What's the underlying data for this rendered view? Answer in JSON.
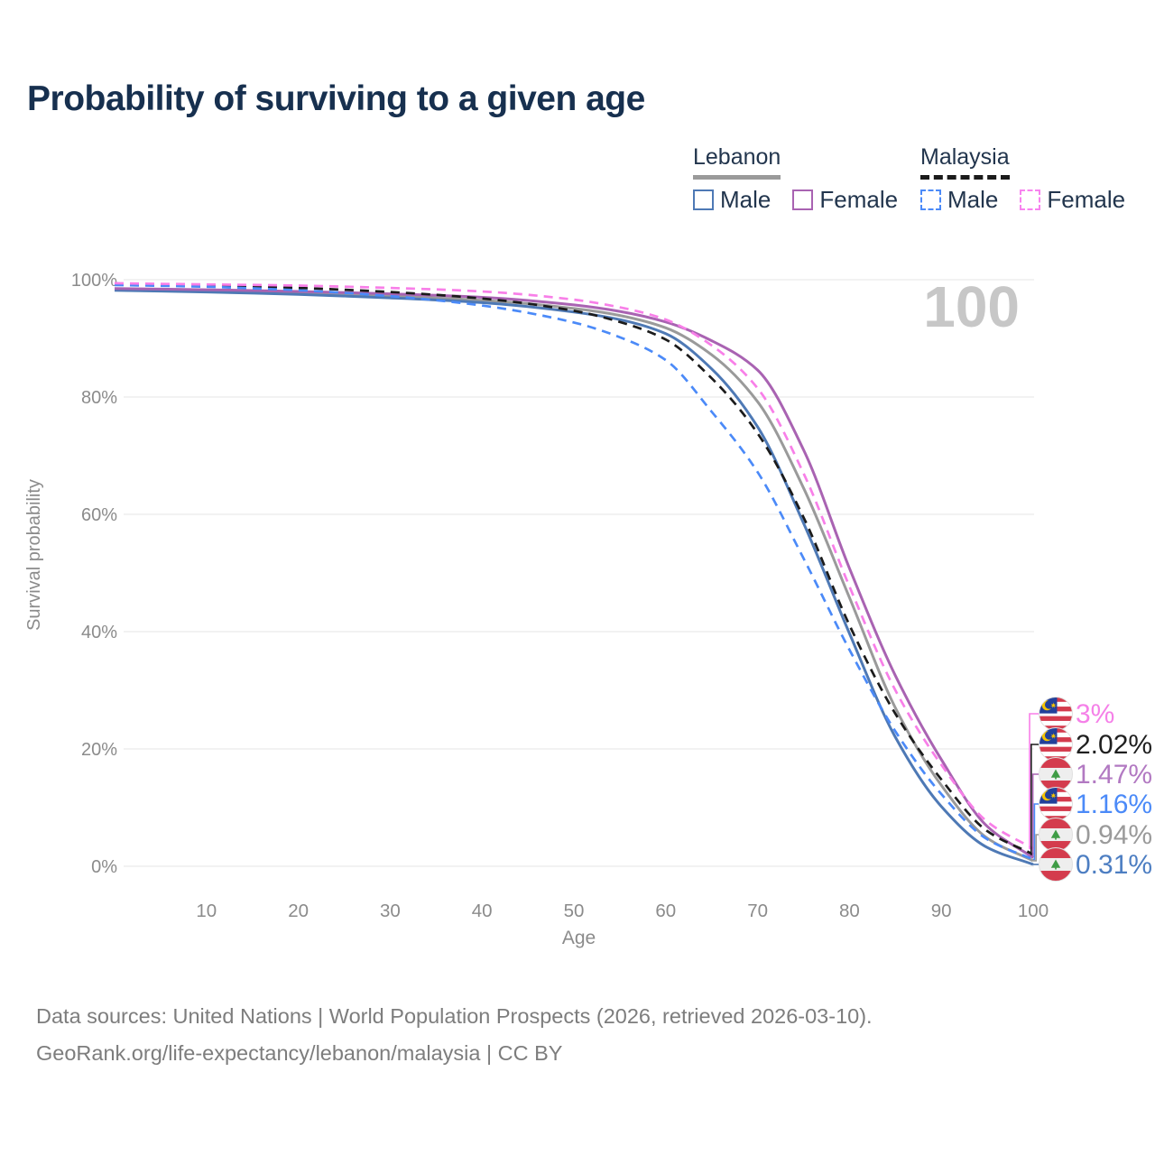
{
  "title": "Probability of surviving to a given age",
  "watermark_age": "100",
  "legend": {
    "groups": [
      {
        "label": "Lebanon",
        "underline_color": "#9a9a9a",
        "underline_style": "solid",
        "items": [
          {
            "label": "Male",
            "color": "#4e79b5",
            "dashed": false
          },
          {
            "label": "Female",
            "color": "#a963b2",
            "dashed": false
          }
        ]
      },
      {
        "label": "Malaysia",
        "underline_color": "#1b1b1b",
        "underline_style": "dashed",
        "items": [
          {
            "label": "Male",
            "color": "#4b8af8",
            "dashed": true
          },
          {
            "label": "Female",
            "color": "#f883ef",
            "dashed": true
          }
        ]
      }
    ]
  },
  "chart_data": {
    "type": "line",
    "title": "Probability of surviving to a given age",
    "xlabel": "Age",
    "ylabel": "Survival probability",
    "xlim": [
      0,
      100
    ],
    "ylim": [
      0,
      100
    ],
    "x_ticks": [
      10,
      20,
      30,
      40,
      50,
      60,
      70,
      80,
      90,
      100
    ],
    "y_ticks": [
      0,
      20,
      40,
      60,
      80,
      100
    ],
    "y_tick_suffix": "%",
    "grid": "horizontal",
    "legend_position": "top-right",
    "watermark": "100",
    "x": [
      0,
      10,
      20,
      30,
      40,
      50,
      55,
      60,
      65,
      70,
      75,
      80,
      85,
      90,
      95,
      100
    ],
    "series": [
      {
        "name": "Lebanon",
        "country": "lebanon",
        "sex": "both",
        "color": "#9a9a9a",
        "dashed": false,
        "end_label": "0.94%",
        "end_value": 0.94,
        "label_color": "#9a9a9a",
        "values": [
          98.3,
          98.1,
          97.8,
          97.2,
          96.5,
          95.1,
          93.9,
          91.8,
          87.2,
          79.2,
          64.5,
          45.8,
          27.0,
          13.8,
          4.8,
          0.94
        ]
      },
      {
        "name": "Lebanon Male",
        "country": "lebanon",
        "sex": "male",
        "color": "#4e79b5",
        "dashed": false,
        "end_label": "0.31%",
        "end_value": 0.31,
        "label_color": "#4d7ec2",
        "values": [
          98.2,
          97.9,
          97.5,
          96.9,
          96.1,
          94.5,
          93.2,
          90.8,
          84.8,
          74.9,
          58.5,
          39.7,
          22.0,
          10.2,
          3.2,
          0.31
        ]
      },
      {
        "name": "Lebanon Female",
        "country": "lebanon",
        "sex": "female",
        "color": "#a963b2",
        "dashed": false,
        "end_label": "1.47%",
        "end_value": 1.47,
        "label_color": "#b279c2",
        "values": [
          98.5,
          98.3,
          98.0,
          97.6,
          97.0,
          95.7,
          94.6,
          92.8,
          89.6,
          84.6,
          71.0,
          50.8,
          32.5,
          18.2,
          6.8,
          1.47
        ]
      },
      {
        "name": "Malaysia",
        "country": "malaysia",
        "sex": "both",
        "color": "#1b1b1b",
        "dashed": true,
        "end_label": "2.02%",
        "end_value": 2.02,
        "label_color": "#1f1f1f",
        "values": [
          99.2,
          99.0,
          98.6,
          97.9,
          96.8,
          94.7,
          92.8,
          89.8,
          83.2,
          73.8,
          59.5,
          41.1,
          26.0,
          14.8,
          6.0,
          2.02
        ]
      },
      {
        "name": "Malaysia Male",
        "country": "malaysia",
        "sex": "male",
        "color": "#4b8af8",
        "dashed": true,
        "end_label": "1.16%",
        "end_value": 1.16,
        "label_color": "#4b8af8",
        "values": [
          99.1,
          98.8,
          98.2,
          97.2,
          95.6,
          92.7,
          90.2,
          86.3,
          77.5,
          67.2,
          52.5,
          36.9,
          23.0,
          12.3,
          4.6,
          1.16
        ]
      },
      {
        "name": "Malaysia Female",
        "country": "malaysia",
        "sex": "female",
        "color": "#f87fe8",
        "dashed": true,
        "end_label": "3%",
        "end_value": 3.0,
        "label_color": "#f580e8",
        "values": [
          99.4,
          99.2,
          99.0,
          98.6,
          98.0,
          96.6,
          95.3,
          93.2,
          88.8,
          81.5,
          67.0,
          47.7,
          30.0,
          17.3,
          7.6,
          3.0
        ]
      }
    ]
  },
  "footer": {
    "line1": "Data sources: United Nations | World Population Prospects (2026, retrieved 2026-03-10).",
    "line2": "GeoRank.org/life-expectancy/lebanon/malaysia | CC BY"
  }
}
